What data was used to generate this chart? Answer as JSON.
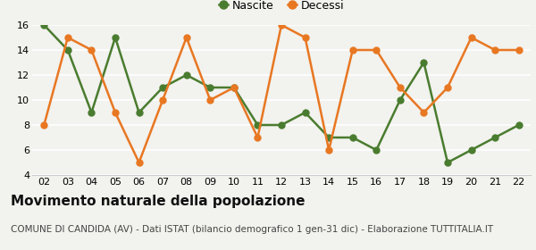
{
  "years": [
    2,
    3,
    4,
    5,
    6,
    7,
    8,
    9,
    10,
    11,
    12,
    13,
    14,
    15,
    16,
    17,
    18,
    19,
    20,
    21,
    22
  ],
  "nascite": [
    16,
    14,
    9,
    15,
    9,
    11,
    12,
    11,
    11,
    8,
    8,
    9,
    7,
    7,
    6,
    10,
    13,
    5,
    6,
    7,
    8
  ],
  "decessi": [
    8,
    15,
    14,
    9,
    5,
    10,
    15,
    10,
    11,
    7,
    16,
    15,
    6,
    14,
    14,
    11,
    9,
    11,
    15,
    14,
    14
  ],
  "nascite_color": "#4a7c2f",
  "decessi_color": "#e87722",
  "ylim": [
    4,
    16
  ],
  "yticks": [
    4,
    6,
    8,
    10,
    12,
    14,
    16
  ],
  "xlabel_labels": [
    "02",
    "03",
    "04",
    "05",
    "06",
    "07",
    "08",
    "09",
    "10",
    "11",
    "12",
    "13",
    "14",
    "15",
    "16",
    "17",
    "18",
    "19",
    "20",
    "21",
    "22"
  ],
  "title": "Movimento naturale della popolazione",
  "subtitle": "COMUNE DI CANDIDA (AV) - Dati ISTAT (bilancio demografico 1 gen-31 dic) - Elaborazione TUTTITALIA.IT",
  "legend_nascite": "Nascite",
  "legend_decessi": "Decessi",
  "background_color": "#f2f2ee",
  "grid_color": "#ffffff",
  "marker_size": 5,
  "line_width": 1.8,
  "title_fontsize": 11,
  "subtitle_fontsize": 7.5,
  "tick_fontsize": 8,
  "legend_fontsize": 9
}
